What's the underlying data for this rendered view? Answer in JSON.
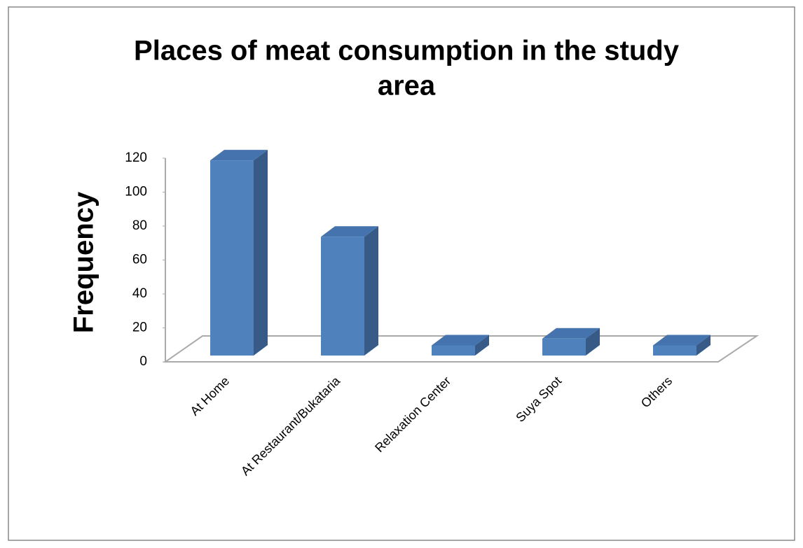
{
  "chart_data": {
    "type": "bar",
    "title": "Places of meat consumption in the study area",
    "title_lines": [
      "Places of meat consumption in the study",
      "area"
    ],
    "y_label": "Frequency",
    "categories": [
      "At Home",
      "At Restaurant/Bukataria",
      "Relaxation Center",
      "Suya Spot",
      "Others"
    ],
    "values": [
      115,
      70,
      6,
      10,
      6
    ],
    "color": "#4f81bd",
    "ylim": [
      0,
      120
    ],
    "yticks": [
      0,
      20,
      40,
      60,
      80,
      100,
      120
    ],
    "grid": false
  }
}
